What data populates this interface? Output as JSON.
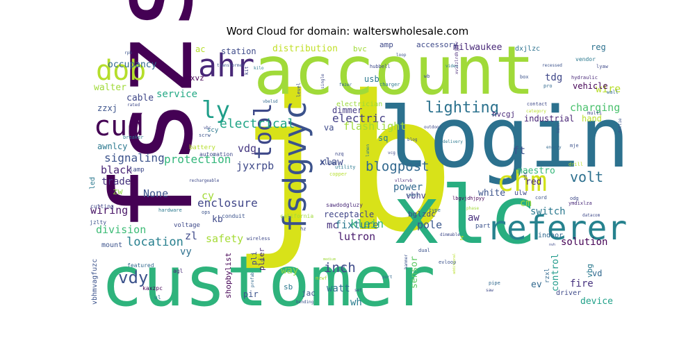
{
  "chart_data": {
    "type": "wordcloud",
    "title": "Word Cloud for domain: walterswholesale.com",
    "words": [
      {
        "text": "customer",
        "weight": 100,
        "color": "#2eb37c"
      },
      {
        "text": "jb",
        "weight": 95,
        "color": "#d8e219"
      },
      {
        "text": "account",
        "weight": 72,
        "color": "#a0da39"
      },
      {
        "text": "login",
        "weight": 70,
        "color": "#2c718e"
      },
      {
        "text": "fszs",
        "weight": 68,
        "color": "#440154"
      },
      {
        "text": "xlc",
        "weight": 66,
        "color": "#28ae80"
      },
      {
        "text": "fsdgvyc",
        "weight": 40,
        "color": "#3b528b"
      },
      {
        "text": "referer",
        "weight": 38,
        "color": "#26828e"
      },
      {
        "text": "chm",
        "weight": 35,
        "color": "#d2e21b"
      },
      {
        "text": "dob",
        "weight": 34,
        "color": "#b5de2b"
      },
      {
        "text": "ahr",
        "weight": 32,
        "color": "#482878"
      },
      {
        "text": "cud",
        "weight": 30,
        "color": "#440154"
      },
      {
        "text": "tool",
        "weight": 28,
        "color": "#3e4989"
      },
      {
        "text": "ly",
        "weight": 26,
        "color": "#1f9e89"
      },
      {
        "text": "lighting",
        "weight": 20,
        "color": "#2c728e"
      },
      {
        "text": "blogpost",
        "weight": 18,
        "color": "#31688e"
      },
      {
        "text": "volt",
        "weight": 16,
        "color": "#2d708e"
      },
      {
        "text": "location",
        "weight": 16,
        "color": "#277f8e"
      },
      {
        "text": "vdy",
        "weight": 19,
        "color": "#3b528b"
      },
      {
        "text": "inch",
        "weight": 16,
        "color": "#3e4a89"
      },
      {
        "text": "electrical",
        "weight": 15,
        "color": "#20a486"
      },
      {
        "text": "electric",
        "weight": 14,
        "color": "#433e85"
      },
      {
        "text": "protection",
        "weight": 14,
        "color": "#32b67a"
      },
      {
        "text": "signaling",
        "weight": 14,
        "color": "#3b528b"
      },
      {
        "text": "flashlight",
        "weight": 13,
        "color": "#9fda3a"
      },
      {
        "text": "charging",
        "weight": 14,
        "color": "#4ac16d"
      },
      {
        "text": "wire",
        "weight": 14,
        "color": "#b8de29"
      },
      {
        "text": "enclosure",
        "weight": 13,
        "color": "#404688"
      },
      {
        "text": "jyxrpb",
        "weight": 13,
        "color": "#3e4989"
      },
      {
        "text": "vdg",
        "weight": 13,
        "color": "#453781"
      },
      {
        "text": "None",
        "weight": 13,
        "color": "#3b528b"
      },
      {
        "text": "trade",
        "weight": 12,
        "color": "#46337e"
      },
      {
        "text": "black",
        "weight": 13,
        "color": "#482475"
      },
      {
        "text": "wiring",
        "weight": 13,
        "color": "#471365"
      },
      {
        "text": "division",
        "weight": 13,
        "color": "#3cbb75"
      },
      {
        "text": "safety",
        "weight": 13,
        "color": "#a5db36"
      },
      {
        "text": "klein",
        "weight": 13,
        "color": "#35b779"
      },
      {
        "text": "power",
        "weight": 13,
        "color": "#31688e"
      },
      {
        "text": "xlaw",
        "weight": 13,
        "color": "#3e4989"
      },
      {
        "text": "fixture",
        "weight": 13,
        "color": "#2a788e"
      },
      {
        "text": "lutron",
        "weight": 13,
        "color": "#481a6c"
      },
      {
        "text": "pole",
        "weight": 13,
        "color": "#39568c"
      },
      {
        "text": "switch",
        "weight": 12,
        "color": "#2a788e"
      },
      {
        "text": "solution",
        "weight": 12,
        "color": "#440154"
      },
      {
        "text": "fire",
        "weight": 12,
        "color": "#46327e"
      },
      {
        "text": "device",
        "weight": 12,
        "color": "#1fa088"
      },
      {
        "text": "control",
        "weight": 12,
        "color": "#1f9a8a"
      },
      {
        "text": "watt",
        "weight": 12,
        "color": "#2d708e"
      },
      {
        "text": "wh",
        "weight": 12,
        "color": "#287c8e"
      },
      {
        "text": "way",
        "weight": 12,
        "color": "#8fd744"
      },
      {
        "text": "sensor",
        "weight": 12,
        "color": "#5ec962"
      },
      {
        "text": "service",
        "weight": 12,
        "color": "#22a884"
      },
      {
        "text": "cable",
        "weight": 12,
        "color": "#3f4788"
      },
      {
        "text": "walter",
        "weight": 12,
        "color": "#a0da39"
      },
      {
        "text": "occupancy",
        "weight": 12,
        "color": "#31688e"
      },
      {
        "text": "distribution",
        "weight": 12,
        "color": "#c0df25"
      },
      {
        "text": "milwaukee",
        "weight": 12,
        "color": "#482878"
      },
      {
        "text": "accessory",
        "weight": 11,
        "color": "#3e4989"
      },
      {
        "text": "industrial",
        "weight": 11,
        "color": "#482475"
      },
      {
        "text": "maestro",
        "weight": 12,
        "color": "#35b779"
      },
      {
        "text": "white",
        "weight": 12,
        "color": "#3b528b"
      },
      {
        "text": "receptacle",
        "weight": 11,
        "color": "#404588"
      },
      {
        "text": "vehicle",
        "weight": 11,
        "color": "#440154"
      },
      {
        "text": "dimmer",
        "weight": 11,
        "color": "#443a83"
      },
      {
        "text": "station",
        "weight": 11,
        "color": "#3e4a89"
      },
      {
        "text": "electrician",
        "weight": 10,
        "color": "#9bd93c"
      },
      {
        "text": "shopbylist",
        "weight": 10,
        "color": "#440154"
      },
      {
        "text": "vbhmvagfuzc",
        "weight": 9,
        "color": "#3b528b"
      },
      {
        "text": "reg",
        "weight": 12,
        "color": "#2c718e"
      },
      {
        "text": "hand",
        "weight": 12,
        "color": "#b8de29"
      },
      {
        "text": "tdg",
        "weight": 12,
        "color": "#3f4788"
      },
      {
        "text": "red",
        "weight": 12,
        "color": "#482878"
      },
      {
        "text": "ft",
        "weight": 12,
        "color": "#3b528b"
      },
      {
        "text": "cm",
        "weight": 12,
        "color": "#9bd93c"
      },
      {
        "text": "aw",
        "weight": 12,
        "color": "#472e7c"
      },
      {
        "text": "mc",
        "weight": 12,
        "color": "#46327e"
      },
      {
        "text": "zl",
        "weight": 12,
        "color": "#3e4989"
      },
      {
        "text": "vy",
        "weight": 12,
        "color": "#2d708e"
      },
      {
        "text": "cy",
        "weight": 13,
        "color": "#a2da37"
      },
      {
        "text": "kb",
        "weight": 12,
        "color": "#3e4989"
      },
      {
        "text": "ev",
        "weight": 12,
        "color": "#31688e"
      },
      {
        "text": "sq",
        "weight": 11,
        "color": "#277f8e"
      },
      {
        "text": "va",
        "weight": 11,
        "color": "#3e4989"
      },
      {
        "text": "usb",
        "weight": 11,
        "color": "#2a788e"
      },
      {
        "text": "amp",
        "weight": 11,
        "color": "#3e4989"
      },
      {
        "text": "bvc",
        "weight": 11,
        "color": "#a0da39"
      },
      {
        "text": "ac",
        "weight": 12,
        "color": "#b5de2b"
      },
      {
        "text": "zw",
        "weight": 11,
        "color": "#90d743"
      },
      {
        "text": "zzxj",
        "weight": 11,
        "color": "#3b528b"
      },
      {
        "text": "vbhv",
        "weight": 11,
        "color": "#433e85"
      },
      {
        "text": "pir",
        "weight": 11,
        "color": "#3b528b"
      },
      {
        "text": "sb",
        "weight": 10,
        "color": "#2a788e"
      },
      {
        "text": "jac",
        "weight": 10,
        "color": "#3b528b"
      },
      {
        "text": "vd",
        "weight": 11,
        "color": "#31688e"
      },
      {
        "text": "vbg",
        "weight": 11,
        "color": "#2a788e"
      },
      {
        "text": "z",
        "weight": 11,
        "color": "#b8de29"
      },
      {
        "text": "pli",
        "weight": 10,
        "color": "#3e4989"
      },
      {
        "text": "plier",
        "weight": 10,
        "color": "#482878"
      },
      {
        "text": "awnlcy",
        "weight": 11,
        "color": "#2a788e"
      },
      {
        "text": "vymxvz",
        "weight": 10,
        "color": "#440154"
      },
      {
        "text": "xlaw",
        "weight": 10,
        "color": "#3b528b"
      },
      {
        "text": "hvcgj",
        "weight": 10,
        "color": "#482878"
      },
      {
        "text": "bglzdc",
        "weight": 10,
        "color": "#3e4989"
      },
      {
        "text": "dxjlzc",
        "weight": 10,
        "color": "#2c718e"
      },
      {
        "text": "ulw",
        "weight": 10,
        "color": "#3e4989"
      },
      {
        "text": "rzxl",
        "weight": 9,
        "color": "#31688e"
      },
      {
        "text": "driver",
        "weight": 10,
        "color": "#3e4989"
      },
      {
        "text": "part",
        "weight": 9,
        "color": "#3b528b"
      },
      {
        "text": "indoor",
        "weight": 9,
        "color": "#31688e"
      },
      {
        "text": "mount",
        "weight": 9,
        "color": "#3b528b"
      },
      {
        "text": "led",
        "weight": 9,
        "color": "#2a788e"
      },
      {
        "text": "lamp",
        "weight": 9,
        "color": "#3e4989"
      },
      {
        "text": "cutting",
        "weight": 8,
        "color": "#3e4989"
      },
      {
        "text": "jzlty",
        "weight": 8,
        "color": "#3b528b"
      },
      {
        "text": "voltage",
        "weight": 8,
        "color": "#3e4989"
      },
      {
        "text": "conduit",
        "weight": 8,
        "color": "#3b528b"
      },
      {
        "text": "wireless",
        "weight": 7,
        "color": "#3e4989"
      },
      {
        "text": "featured",
        "weight": 8,
        "color": "#31688e"
      },
      {
        "text": "agl",
        "weight": 8,
        "color": "#482878"
      },
      {
        "text": "kaxzpc",
        "weight": 8,
        "color": "#440154"
      },
      {
        "text": "ul",
        "weight": 8,
        "color": "#2a788e"
      },
      {
        "text": "battery",
        "weight": 9,
        "color": "#b5de2b"
      },
      {
        "text": "automation",
        "weight": 8,
        "color": "#3e4989"
      },
      {
        "text": "scy",
        "weight": 9,
        "color": "#2a788e"
      },
      {
        "text": "scrw",
        "weight": 7,
        "color": "#3b528b"
      },
      {
        "text": "nzq",
        "weight": 7,
        "color": "#3e4989"
      },
      {
        "text": "utility",
        "weight": 7,
        "color": "#2a788e"
      },
      {
        "text": "copper",
        "weight": 7,
        "color": "#b5de2b"
      },
      {
        "text": "rechargeable",
        "weight": 6,
        "color": "#3e4989"
      },
      {
        "text": "sawdodgluzy",
        "weight": 7,
        "color": "#482878"
      },
      {
        "text": "california",
        "weight": 8,
        "color": "#a0da39"
      },
      {
        "text": "hz",
        "weight": 7,
        "color": "#3e4989"
      },
      {
        "text": "ops",
        "weight": 7,
        "color": "#3b528b"
      },
      {
        "text": "hardware",
        "weight": 7,
        "color": "#2a788e"
      },
      {
        "text": "sdc",
        "weight": 7,
        "color": "#3e4989"
      },
      {
        "text": "vllxrvb",
        "weight": 6,
        "color": "#482878"
      },
      {
        "text": "lbgvjdhjpyy",
        "weight": 7,
        "color": "#440154"
      },
      {
        "text": "smart",
        "weight": 6,
        "color": "#31688e"
      },
      {
        "text": "cord",
        "weight": 7,
        "color": "#3b528b"
      },
      {
        "text": "odg",
        "weight": 7,
        "color": "#3e4989"
      },
      {
        "text": "drill",
        "weight": 7,
        "color": "#b8de29"
      },
      {
        "text": "mje",
        "weight": 7,
        "color": "#3b528b"
      },
      {
        "text": "ymdixlza",
        "weight": 7,
        "color": "#482878"
      },
      {
        "text": "datacom",
        "weight": 6,
        "color": "#3e4989"
      },
      {
        "text": "type",
        "weight": 7,
        "color": "#31688e"
      },
      {
        "text": "phase",
        "weight": 6,
        "color": "#a0da39"
      },
      {
        "text": "dimmable",
        "weight": 6,
        "color": "#3e4989"
      },
      {
        "text": "evloop",
        "weight": 7,
        "color": "#3b528b"
      },
      {
        "text": "pipe",
        "weight": 7,
        "color": "#31688e"
      },
      {
        "text": "saw",
        "weight": 6,
        "color": "#3e4989"
      },
      {
        "text": "hammer",
        "weight": 6,
        "color": "#3b528b"
      },
      {
        "text": "port",
        "weight": 6,
        "color": "#31688e"
      },
      {
        "text": "dual",
        "weight": 7,
        "color": "#3b528b"
      },
      {
        "text": "lumen",
        "weight": 6,
        "color": "#2a788e"
      },
      {
        "text": "vcg",
        "weight": 6,
        "color": "#3e4989"
      },
      {
        "text": "blog",
        "weight": 6,
        "color": "#3b528b"
      },
      {
        "text": "delivery",
        "weight": 6,
        "color": "#2a788e"
      },
      {
        "text": "outdoor",
        "weight": 6,
        "color": "#3e4989"
      },
      {
        "text": "energy",
        "weight": 6,
        "color": "#31688e"
      },
      {
        "text": "kdxn",
        "weight": 6,
        "color": "#3b528b"
      },
      {
        "text": "multi",
        "weight": 7,
        "color": "#3e4989"
      },
      {
        "text": "wall",
        "weight": 7,
        "color": "#31688e"
      },
      {
        "text": "dottie",
        "weight": 6,
        "color": "#3b528b"
      },
      {
        "text": "contact",
        "weight": 7,
        "color": "#3e4989"
      },
      {
        "text": "category",
        "weight": 6,
        "color": "#b8de29"
      },
      {
        "text": "box",
        "weight": 7,
        "color": "#3b528b"
      },
      {
        "text": "pro",
        "weight": 7,
        "color": "#31688e"
      },
      {
        "text": "hydraulic",
        "weight": 7,
        "color": "#482878"
      },
      {
        "text": "vendor",
        "weight": 8,
        "color": "#2a788e"
      },
      {
        "text": "lyaw",
        "weight": 7,
        "color": "#3e4989"
      },
      {
        "text": "recessed",
        "weight": 6,
        "color": "#3b528b"
      },
      {
        "text": "kit",
        "weight": 7,
        "color": "#3e4989"
      },
      {
        "text": "kilo",
        "weight": 6,
        "color": "#2a788e"
      },
      {
        "text": "transformer",
        "weight": 6,
        "color": "#3b528b"
      },
      {
        "text": "hubbell",
        "weight": 7,
        "color": "#3e4989"
      },
      {
        "text": "fmzer",
        "weight": 6,
        "color": "#31688e"
      },
      {
        "text": "charger",
        "weight": 7,
        "color": "#2a788e"
      },
      {
        "text": "loop",
        "weight": 6,
        "color": "#3b528b"
      },
      {
        "text": "wb",
        "weight": 7,
        "color": "#3e4989"
      },
      {
        "text": "video",
        "weight": 6,
        "color": "#2a788e"
      },
      {
        "text": "xvitzlrdhjpyv",
        "weight": 6,
        "color": "#482878"
      },
      {
        "text": "single",
        "weight": 6,
        "color": "#3e4989"
      },
      {
        "text": "level",
        "weight": 7,
        "color": "#3b528b"
      },
      {
        "text": "breaker",
        "weight": 7,
        "color": "#2a788e"
      },
      {
        "text": "rated",
        "weight": 6,
        "color": "#3e4989"
      },
      {
        "text": "rpb",
        "weight": 6,
        "color": "#3b528b"
      },
      {
        "text": "vbelsd",
        "weight": 6,
        "color": "#31688e"
      },
      {
        "text": "vbc",
        "weight": 6,
        "color": "#3e4989"
      },
      {
        "text": "medium",
        "weight": 5,
        "color": "#a0da39"
      },
      {
        "text": "vzdg",
        "weight": 5,
        "color": "#3b528b"
      },
      {
        "text": "additional",
        "weight": 5,
        "color": "#b8de29"
      },
      {
        "text": "mzwf",
        "weight": 7,
        "color": "#a5db36"
      },
      {
        "text": "set",
        "weight": 6,
        "color": "#3e4989"
      },
      {
        "text": "bending",
        "weight": 6,
        "color": "#3b528b"
      },
      {
        "text": "prefab",
        "weight": 6,
        "color": "#31688e"
      },
      {
        "text": "m",
        "weight": 8,
        "color": "#3e4989"
      },
      {
        "text": "nvh",
        "weight": 5,
        "color": "#3e4989"
      }
    ]
  }
}
